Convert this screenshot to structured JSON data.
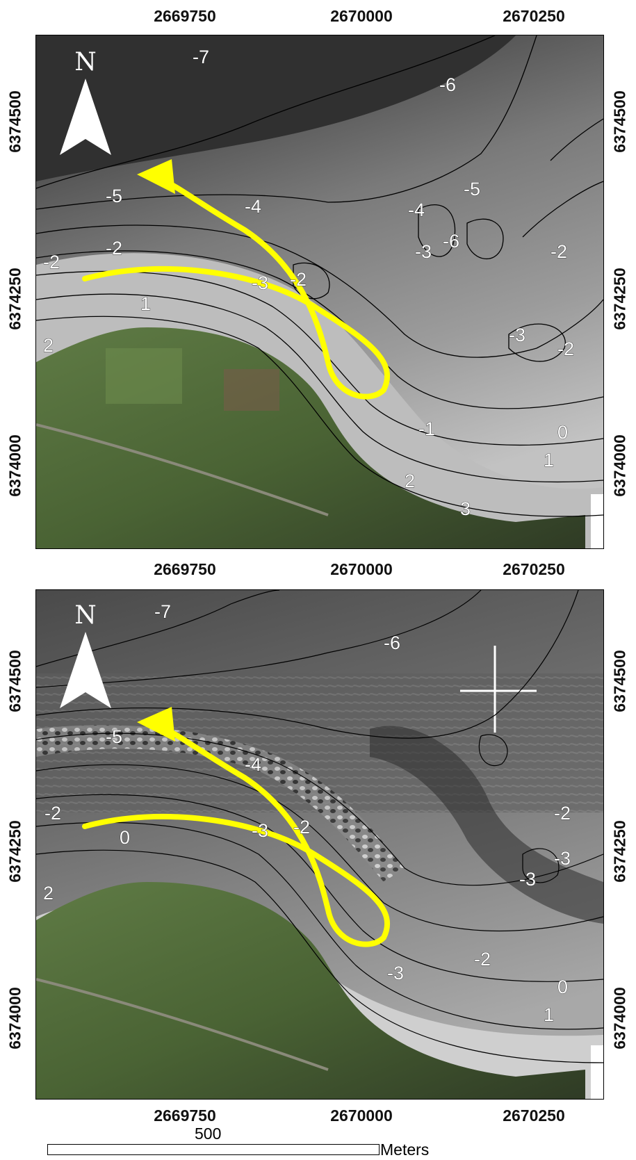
{
  "x_ticks": [
    "2669750",
    "2670000",
    "2670250"
  ],
  "y_ticks": [
    "6374500",
    "6374250",
    "6374000"
  ],
  "north_label": "N",
  "panels": [
    {
      "name": "top",
      "contour_labels": [
        "-7",
        "-6",
        "-5",
        "-5",
        "-4",
        "-4",
        "-3",
        "-2",
        "-2",
        "-2",
        "-3",
        "-2",
        "-1",
        "0",
        "1",
        "1",
        "2",
        "2",
        "3",
        "-6",
        "-3",
        "-2"
      ]
    },
    {
      "name": "bottom",
      "contour_labels": [
        "-7",
        "-6",
        "-5",
        "-4",
        "-2",
        "0",
        "-3",
        "-2",
        "-3",
        "-3",
        "-2",
        "-3",
        "-2",
        "0",
        "1",
        "2"
      ]
    }
  ],
  "scale_bar": {
    "value": "500",
    "unit": "Meters"
  },
  "colors": {
    "arrow": "#ffff00",
    "contour": "#000000",
    "water_deep": "#3a3a3a",
    "water_shallow": "#b9b9b9",
    "land": "#4e6a36"
  }
}
